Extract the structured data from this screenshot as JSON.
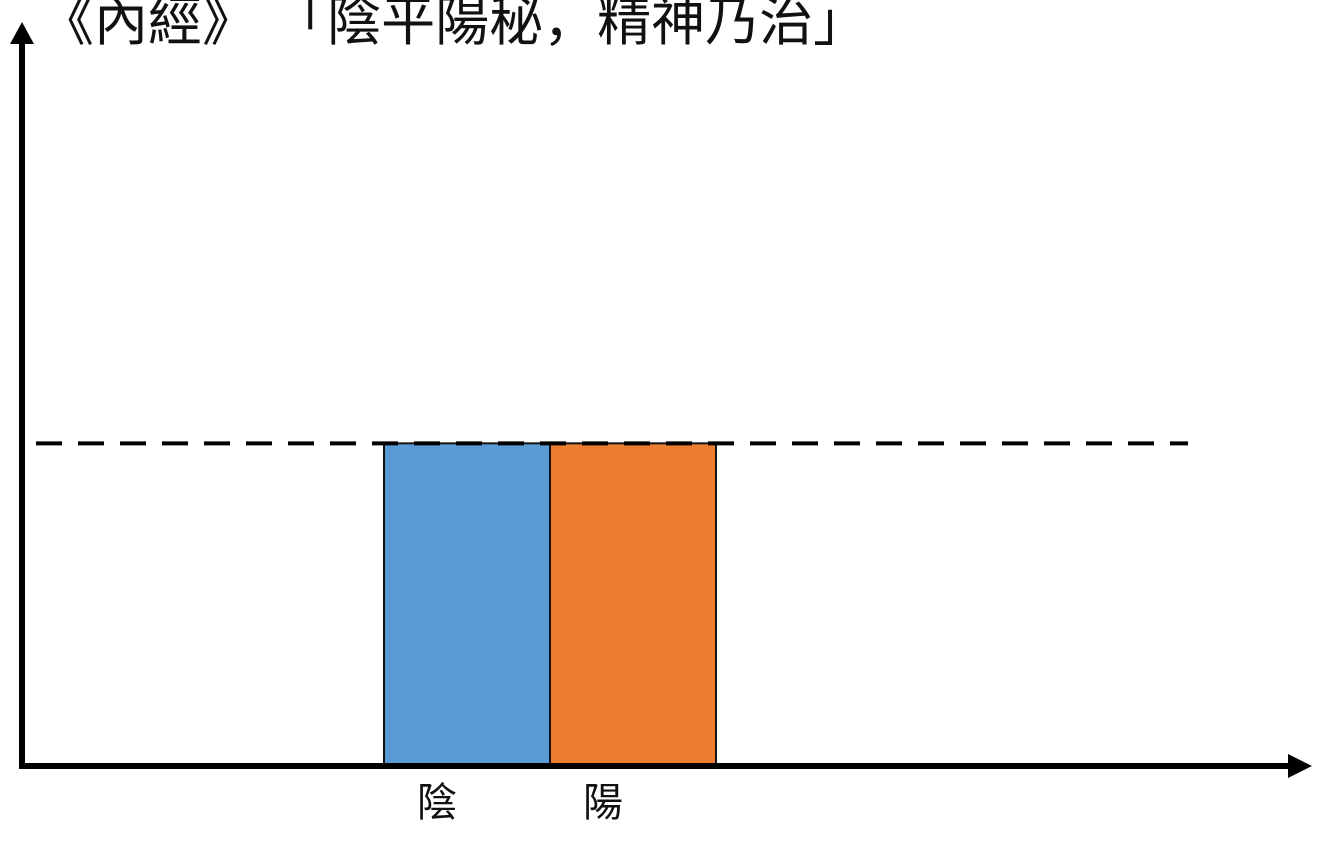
{
  "chart_data": {
    "type": "bar",
    "title": "《內經》 「陰平陽秘，精神乃治」",
    "categories": [
      "陰",
      "陽"
    ],
    "values": [
      1,
      1
    ],
    "colors": [
      "#5b9bd5",
      "#ed7d31"
    ],
    "reference_line": 1,
    "ylim": [
      0,
      2.25
    ],
    "xlabel": "",
    "ylabel": "",
    "grid": false,
    "legend": "none"
  }
}
